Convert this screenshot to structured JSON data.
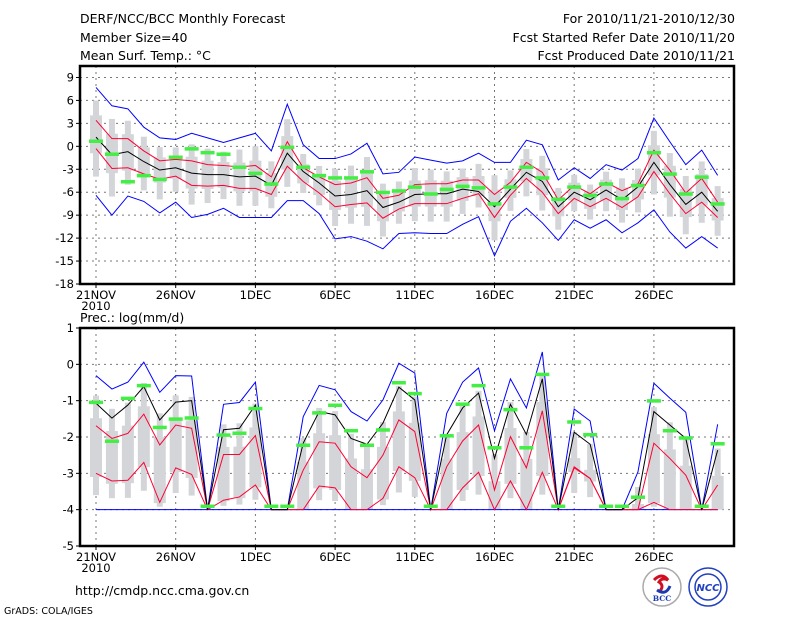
{
  "header": {
    "title": "DERF/NCC/BCC Monthly Forecast",
    "member_size": "Member Size=40",
    "variable": "Mean Surf. Temp.: °C",
    "period": "For 2010/11/21-2010/12/30",
    "started": "Fcst Started Refer Date 2010/11/20",
    "produced": "Fcst Produced Date 2010/11/21"
  },
  "footer": {
    "url": "http://cmdp.ncc.cma.gov.cn",
    "grads": "GrADS: COLA/IGES",
    "logo_bcc": "BCC",
    "logo_ncc": "NCC"
  },
  "colors": {
    "max_min": "#0000ff",
    "spread": "#ff0033",
    "mean": "#000000",
    "obs": "#44ee44",
    "box": "#d4d5d9"
  },
  "chart_data": [
    {
      "type": "line",
      "title": "Mean Surf. Temp.: °C",
      "x_start": "2010-11-21",
      "x_ticks": [
        {
          "day": 0,
          "label": "21NOV",
          "sub": "2010"
        },
        {
          "day": 5,
          "label": "26NOV"
        },
        {
          "day": 10,
          "label": "1DEC"
        },
        {
          "day": 15,
          "label": "6DEC"
        },
        {
          "day": 20,
          "label": "11DEC"
        },
        {
          "day": 25,
          "label": "16DEC"
        },
        {
          "day": 30,
          "label": "21DEC"
        },
        {
          "day": 35,
          "label": "26DEC"
        }
      ],
      "ylim": [
        -18,
        10.5
      ],
      "y_ticks": [
        "9",
        "6",
        "3",
        "0",
        "-3",
        "-6",
        "-9",
        "-12",
        "-15",
        "-18"
      ],
      "grid": true,
      "series": [
        {
          "name": "max",
          "color": "#0000ff",
          "values": [
            7.7,
            5.3,
            4.9,
            2.5,
            1.1,
            0.9,
            1.7,
            1.1,
            0.5,
            1.1,
            1.7,
            -0.6,
            5.5,
            0.2,
            -1.6,
            -1.6,
            -1.0,
            0.4,
            -3.6,
            -3.4,
            -1.4,
            -1.8,
            -2.2,
            -1.9,
            -0.9,
            -2.1,
            -2.1,
            0.8,
            0.2,
            -4.4,
            -2.8,
            -4.2,
            -2.4,
            -3.1,
            -1.6,
            3.7,
            0.6,
            -2.4,
            -0.5,
            -3.8
          ]
        },
        {
          "name": "upper",
          "color": "#ff0033",
          "values": [
            3.4,
            1.0,
            1.0,
            -0.6,
            -1.9,
            -1.7,
            -1.9,
            -2.4,
            -2.5,
            -2.7,
            -2.5,
            -4.0,
            0.6,
            -2.8,
            -4.0,
            -5.0,
            -4.8,
            -4.1,
            -6.8,
            -6.4,
            -5.0,
            -4.9,
            -4.9,
            -4.4,
            -4.4,
            -6.3,
            -4.7,
            -2.1,
            -3.4,
            -7.0,
            -5.1,
            -6.2,
            -4.7,
            -5.8,
            -4.9,
            -0.5,
            -3.1,
            -6.1,
            -4.2,
            -7.3
          ]
        },
        {
          "name": "mean",
          "color": "#000000",
          "values": [
            1.2,
            -1.1,
            -0.7,
            -2.0,
            -3.1,
            -2.8,
            -3.5,
            -3.7,
            -3.7,
            -4.0,
            -3.9,
            -5.1,
            -0.9,
            -3.3,
            -4.8,
            -6.5,
            -6.3,
            -5.8,
            -8.0,
            -7.3,
            -6.3,
            -6.2,
            -6.2,
            -5.6,
            -5.9,
            -7.9,
            -5.6,
            -3.4,
            -4.6,
            -7.9,
            -6.0,
            -7.0,
            -5.7,
            -7.0,
            -5.3,
            -2.1,
            -5.0,
            -7.6,
            -6.0,
            -8.5
          ]
        },
        {
          "name": "lower",
          "color": "#ff0033",
          "values": [
            -0.3,
            -2.9,
            -2.8,
            -3.6,
            -4.3,
            -3.9,
            -5.1,
            -5.2,
            -5.1,
            -5.5,
            -5.5,
            -6.3,
            -2.6,
            -4.6,
            -6.1,
            -7.9,
            -7.6,
            -7.4,
            -9.4,
            -8.2,
            -7.5,
            -7.5,
            -7.5,
            -6.8,
            -6.2,
            -9.3,
            -6.4,
            -4.2,
            -6.0,
            -8.8,
            -6.8,
            -7.9,
            -6.8,
            -8.0,
            -6.6,
            -3.3,
            -6.2,
            -8.8,
            -7.3,
            -9.3
          ]
        },
        {
          "name": "min",
          "color": "#0000ff",
          "values": [
            -6.4,
            -9.0,
            -6.5,
            -7.2,
            -8.7,
            -7.3,
            -9.3,
            -8.9,
            -8.1,
            -9.3,
            -9.3,
            -9.3,
            -7.1,
            -7.1,
            -8.8,
            -12.1,
            -11.8,
            -12.4,
            -13.4,
            -11.4,
            -11.3,
            -11.4,
            -11.4,
            -10.2,
            -9.2,
            -14.3,
            -9.8,
            -8.1,
            -10.0,
            -12.3,
            -9.6,
            -10.7,
            -9.6,
            -11.3,
            -10.0,
            -8.3,
            -11.2,
            -13.3,
            -11.8,
            -13.3
          ]
        },
        {
          "name": "obs",
          "color": "#44ee44",
          "values": [
            0.7,
            -1.0,
            -4.6,
            -3.8,
            -4.3,
            -1.4,
            -0.3,
            -0.8,
            -1.0,
            -2.7,
            -3.5,
            -4.9,
            -0.1,
            -2.7,
            -3.8,
            -4.1,
            -4.1,
            -3.3,
            -6.0,
            -5.8,
            -5.3,
            -6.2,
            -5.6,
            -5.2,
            -5.4,
            -7.5,
            -5.3,
            -2.7,
            -4.1,
            -6.9,
            -5.3,
            -6.4,
            -4.9,
            -6.8,
            -5.1,
            -0.8,
            -3.6,
            -6.2,
            -4.0,
            -7.5
          ]
        }
      ]
    },
    {
      "type": "line",
      "title": "Prec.: log(mm/d)",
      "x_start": "2010-11-21",
      "x_ticks": [
        {
          "day": 0,
          "label": "21NOV",
          "sub": "2010"
        },
        {
          "day": 5,
          "label": "26NOV"
        },
        {
          "day": 10,
          "label": "1DEC"
        },
        {
          "day": 15,
          "label": "6DEC"
        },
        {
          "day": 20,
          "label": "11DEC"
        },
        {
          "day": 25,
          "label": "16DEC"
        },
        {
          "day": 30,
          "label": "21DEC"
        },
        {
          "day": 35,
          "label": "26DEC"
        }
      ],
      "ylim": [
        -5,
        1
      ],
      "y_ticks": [
        "1",
        "0",
        "-1",
        "-2",
        "-3",
        "-4",
        "-5"
      ],
      "grid": true,
      "series": [
        {
          "name": "max",
          "color": "#0000ff",
          "values": [
            -0.31,
            -0.68,
            -0.49,
            0.06,
            -0.77,
            -0.31,
            -0.32,
            -4,
            -1.1,
            -1.05,
            -0.49,
            -4,
            -4,
            -1.44,
            -0.58,
            -0.7,
            -1.3,
            -1.56,
            -0.98,
            0.03,
            -0.24,
            -4,
            -1.35,
            -0.49,
            -0.1,
            -1.83,
            -0.4,
            -1.2,
            0.34,
            -4,
            -1.23,
            -1.56,
            -4,
            -4,
            -2.96,
            -0.52,
            -0.93,
            -1.32,
            -4,
            -1.65
          ]
        },
        {
          "name": "upper",
          "color": "#ff0033",
          "values": [
            -1.69,
            -2.04,
            -1.9,
            -1.37,
            -2.22,
            -1.67,
            -1.76,
            -4,
            -2.48,
            -2.48,
            -1.96,
            -4,
            -4,
            -2.91,
            -2.13,
            -2.17,
            -2.82,
            -3.12,
            -2.5,
            -1.53,
            -1.85,
            -4,
            -2.82,
            -2.11,
            -1.67,
            -3.46,
            -1.99,
            -2.85,
            -1.28,
            -4,
            -2.82,
            -3.14,
            -4,
            -4,
            -4,
            -2.17,
            -2.59,
            -3.05,
            -4,
            -3.32
          ]
        },
        {
          "name": "mean",
          "color": "#000000",
          "values": [
            -1.07,
            -1.48,
            -1.12,
            -0.61,
            -1.53,
            -1.04,
            -1.0,
            -4,
            -1.8,
            -1.76,
            -1.12,
            -4,
            -4,
            -2.17,
            -1.3,
            -1.39,
            -2.04,
            -2.2,
            -1.62,
            -0.63,
            -0.98,
            -4,
            -1.94,
            -1.2,
            -0.79,
            -2.59,
            -1.1,
            -1.93,
            -0.4,
            -4,
            -1.87,
            -2.2,
            -4,
            -4,
            -3.67,
            -1.3,
            -1.67,
            -2.04,
            -4,
            -2.36
          ]
        },
        {
          "name": "lower",
          "color": "#ff0033",
          "values": [
            -3.0,
            -3.21,
            -3.19,
            -2.7,
            -3.8,
            -2.85,
            -3.03,
            -4,
            -3.74,
            -3.65,
            -3.32,
            -4,
            -4,
            -4,
            -3.35,
            -3.4,
            -4,
            -4,
            -3.69,
            -2.82,
            -3.12,
            -4,
            -4,
            -3.4,
            -2.97,
            -4,
            -3.21,
            -4,
            -2.97,
            -4,
            -2.85,
            -3.14,
            -4,
            -4,
            -4,
            -3.8,
            -4,
            -4,
            -4,
            -4
          ]
        },
        {
          "name": "min",
          "color": "#0000ff",
          "values": [
            -4,
            -4,
            -4,
            -4,
            -4,
            -4,
            -4,
            -4,
            -4,
            -4,
            -4,
            -4,
            -4,
            -4,
            -4,
            -4,
            -4,
            -4,
            -4,
            -4,
            -4,
            -4,
            -4,
            -4,
            -4,
            -4,
            -4,
            -4,
            -4,
            -4,
            -4,
            -4,
            -4,
            -4,
            -4,
            -4,
            -4,
            -4,
            -4,
            -4
          ]
        },
        {
          "name": "obs",
          "color": "#44ee44",
          "values": [
            -1.04,
            -2.11,
            -0.93,
            -0.58,
            -1.73,
            -1.5,
            -1.47,
            -3.9,
            -1.94,
            -1.89,
            -1.21,
            -3.9,
            -3.9,
            -2.22,
            -1.33,
            -1.12,
            -1.82,
            -2.22,
            -1.8,
            -0.5,
            -0.8,
            -3.9,
            -1.96,
            -1.09,
            -0.58,
            -2.29,
            -1.24,
            -2.29,
            -0.27,
            -3.9,
            -1.58,
            -1.93,
            -3.9,
            -3.9,
            -3.65,
            -1.0,
            -1.82,
            -2.02,
            -3.9,
            -2.18
          ]
        }
      ]
    }
  ]
}
